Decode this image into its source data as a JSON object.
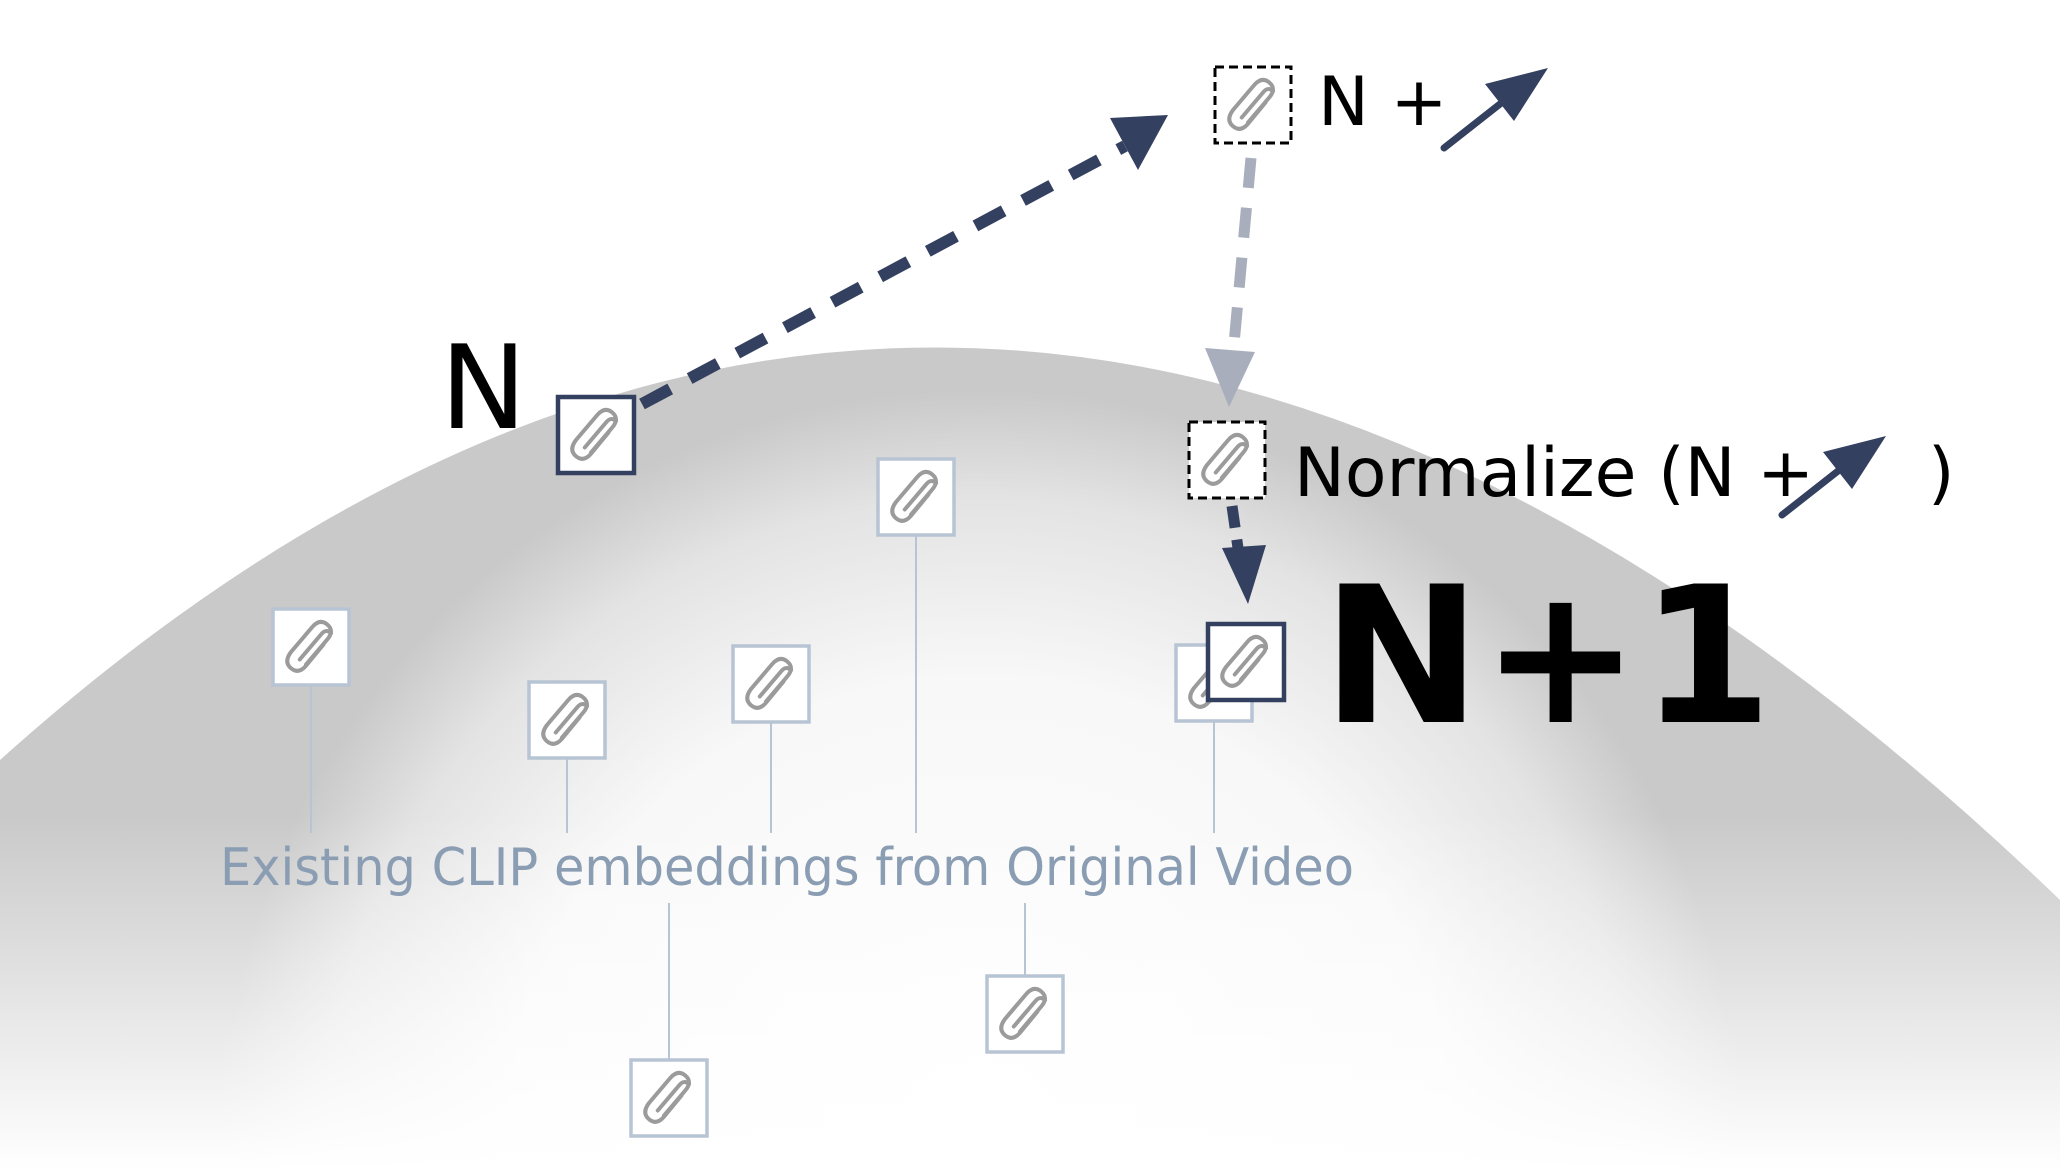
{
  "labels": {
    "n": "N",
    "n_plus": "N +",
    "normalize_open": "Normalize (N +",
    "normalize_close": ")",
    "n_plus_1": "N+1",
    "caption": "Existing CLIP embeddings from Original Video"
  },
  "icons": {
    "embedding": "paperclip-icon",
    "direction": "arrow-up-right-icon"
  },
  "colors": {
    "navy": "#34405f",
    "light_arrow": "#a9aebd",
    "embedding_stroke": "#b7c4d3",
    "caption": "#8a9db3",
    "clip_icon": "#9b9b9b",
    "text": "#000000"
  }
}
